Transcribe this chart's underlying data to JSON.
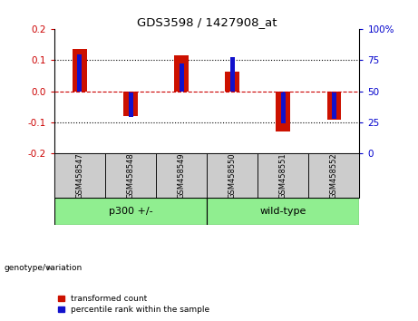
{
  "title": "GDS3598 / 1427908_at",
  "samples": [
    "GSM458547",
    "GSM458548",
    "GSM458549",
    "GSM458550",
    "GSM458551",
    "GSM458552"
  ],
  "red_values": [
    0.135,
    -0.08,
    0.115,
    0.063,
    -0.128,
    -0.092
  ],
  "blue_values": [
    0.118,
    -0.083,
    0.088,
    0.108,
    -0.102,
    -0.088
  ],
  "ylim": [
    -0.2,
    0.2
  ],
  "yticks_left": [
    -0.2,
    -0.1,
    0.0,
    0.1,
    0.2
  ],
  "yticks_right": [
    0,
    25,
    50,
    75,
    100
  ],
  "yticks_right_vals": [
    -0.2,
    -0.1,
    0.0,
    0.1,
    0.2
  ],
  "left_color": "#cc0000",
  "right_color": "#0000cc",
  "bar_red": "#cc1100",
  "bar_blue": "#1111cc",
  "group1_label": "p300 +/-",
  "group2_label": "wild-type",
  "group_color": "#90ee90",
  "group_label": "genotype/variation",
  "legend_red": "transformed count",
  "legend_blue": "percentile rank within the sample",
  "hline_color": "#cc0000",
  "dotted_color": "#000000",
  "bg_color": "#ffffff",
  "sample_bg": "#cccccc"
}
